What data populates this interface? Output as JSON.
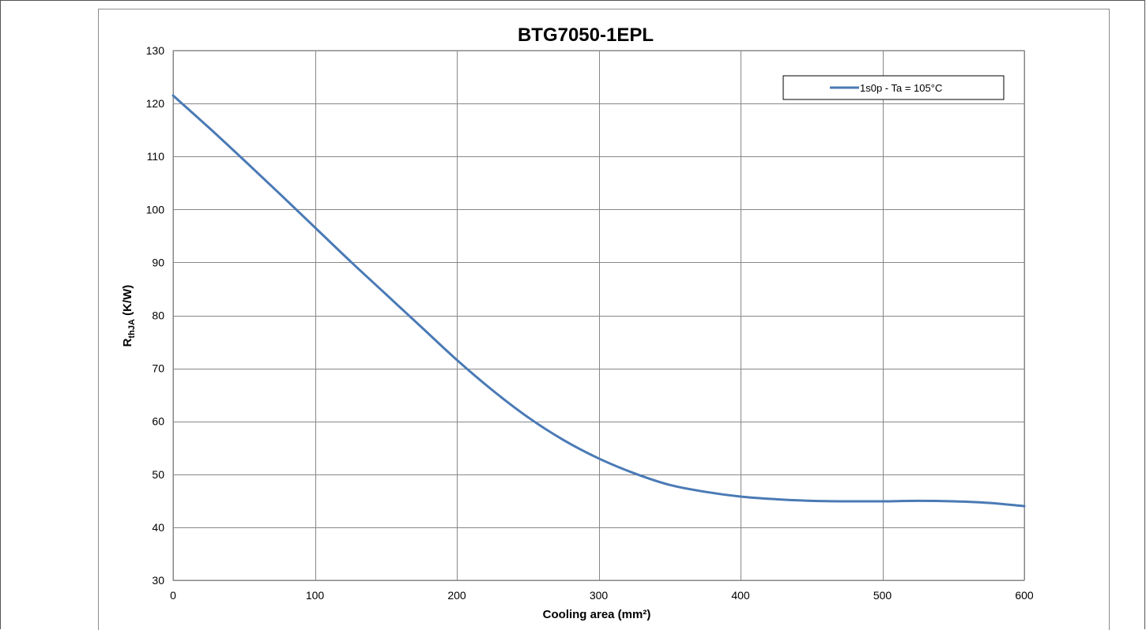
{
  "chart_data": {
    "type": "line",
    "title": "BTG7050-1EPL",
    "xlabel": "Cooling area (mm²)",
    "ylabel": {
      "main": "R",
      "subscript": "thJA",
      "suffix": " (K/W)"
    },
    "xlim": [
      0,
      600
    ],
    "ylim": [
      30,
      130
    ],
    "x_ticks": [
      0,
      100,
      200,
      300,
      400,
      500,
      600
    ],
    "y_ticks": [
      30,
      40,
      50,
      60,
      70,
      80,
      90,
      100,
      110,
      120,
      130
    ],
    "grid": true,
    "legend_position": "top-right",
    "series": [
      {
        "name": "1s0p - Ta = 105°C",
        "color": "#4a7ab5",
        "x": [
          0,
          25,
          50,
          75,
          100,
          125,
          150,
          175,
          200,
          225,
          250,
          275,
          300,
          325,
          350,
          375,
          400,
          425,
          450,
          475,
          500,
          525,
          550,
          575,
          600
        ],
        "y": [
          121.5,
          115.5,
          109.3,
          103.0,
          96.6,
          90.2,
          84.0,
          77.8,
          71.6,
          65.9,
          60.8,
          56.5,
          53.0,
          50.2,
          48.0,
          46.7,
          45.8,
          45.3,
          45.0,
          44.9,
          44.9,
          45.0,
          44.9,
          44.6,
          44.0
        ]
      }
    ]
  }
}
